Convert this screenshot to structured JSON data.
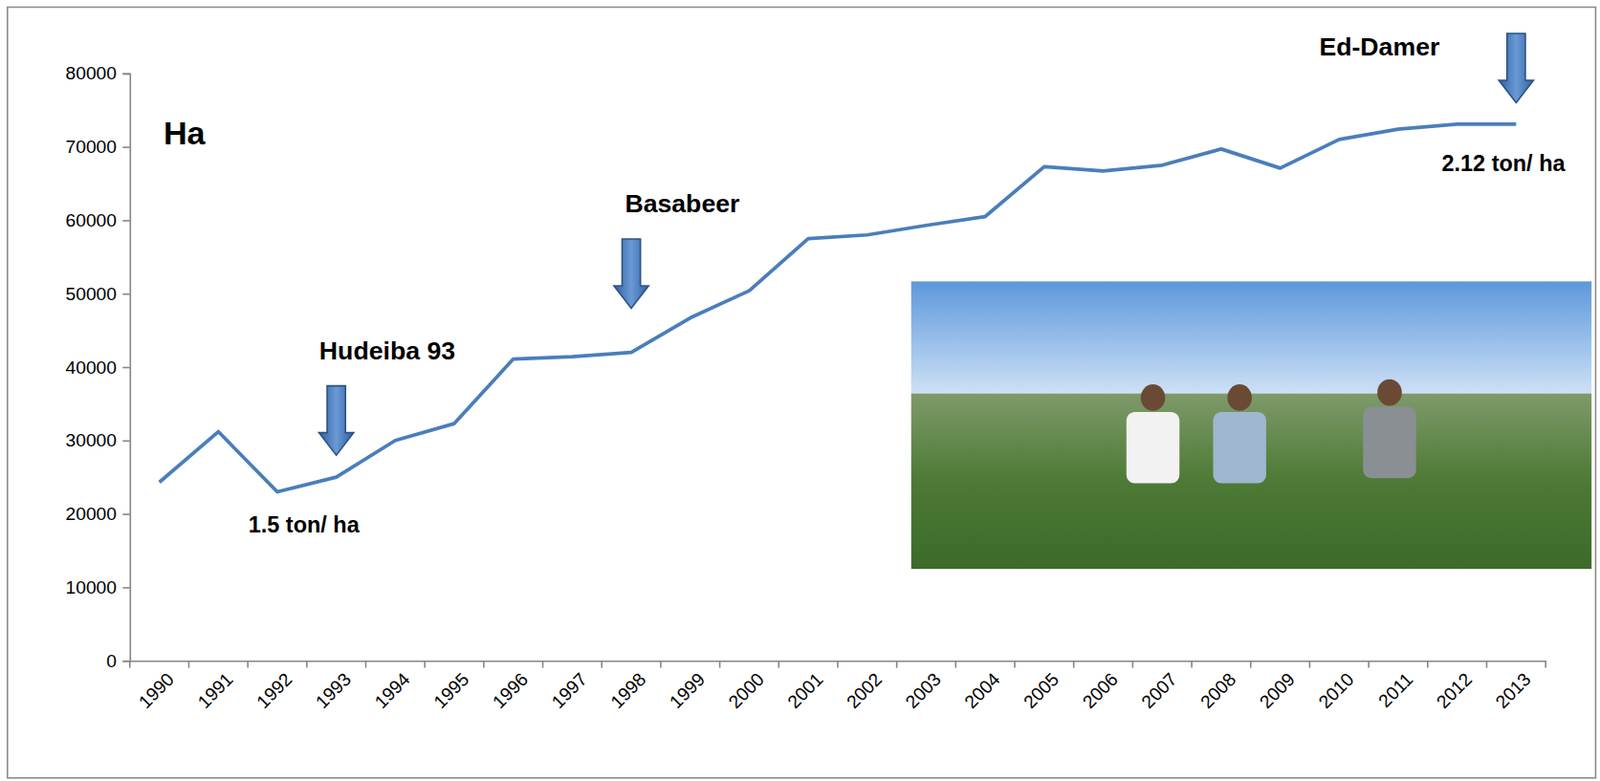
{
  "chart_data": {
    "type": "line",
    "y_label": "Ha",
    "categories": [
      "1990",
      "1991",
      "1992",
      "1993",
      "1994",
      "1995",
      "1996",
      "1997",
      "1998",
      "1999",
      "2000",
      "2001",
      "2002",
      "2003",
      "2004",
      "2005",
      "2006",
      "2007",
      "2008",
      "2009",
      "2010",
      "2011",
      "2012",
      "2013"
    ],
    "values": [
      24300,
      31200,
      23000,
      25000,
      30000,
      32300,
      41100,
      41400,
      42000,
      46700,
      50400,
      57500,
      58000,
      59300,
      60500,
      67300,
      66700,
      67500,
      69700,
      67100,
      71000,
      72400,
      73100,
      73100
    ],
    "color": "#4a7ebb",
    "ylim": [
      0,
      80000
    ],
    "yticks": [
      0,
      10000,
      20000,
      30000,
      40000,
      50000,
      60000,
      70000,
      80000
    ],
    "grid": false,
    "arrows": [
      {
        "text": "Hudeiba 93",
        "x": "1993",
        "y": 28000
      },
      {
        "text": "Basabeer",
        "x": "1998",
        "y": 48000
      },
      {
        "text": "Ed-Damer",
        "x": "2013",
        "y": 76000
      }
    ],
    "annotations": [
      {
        "text": "1.5 ton/ ha",
        "x": "1992",
        "y": 17500
      },
      {
        "text": "2.12 ton/ ha",
        "x": "2013",
        "y": 66700
      }
    ]
  }
}
